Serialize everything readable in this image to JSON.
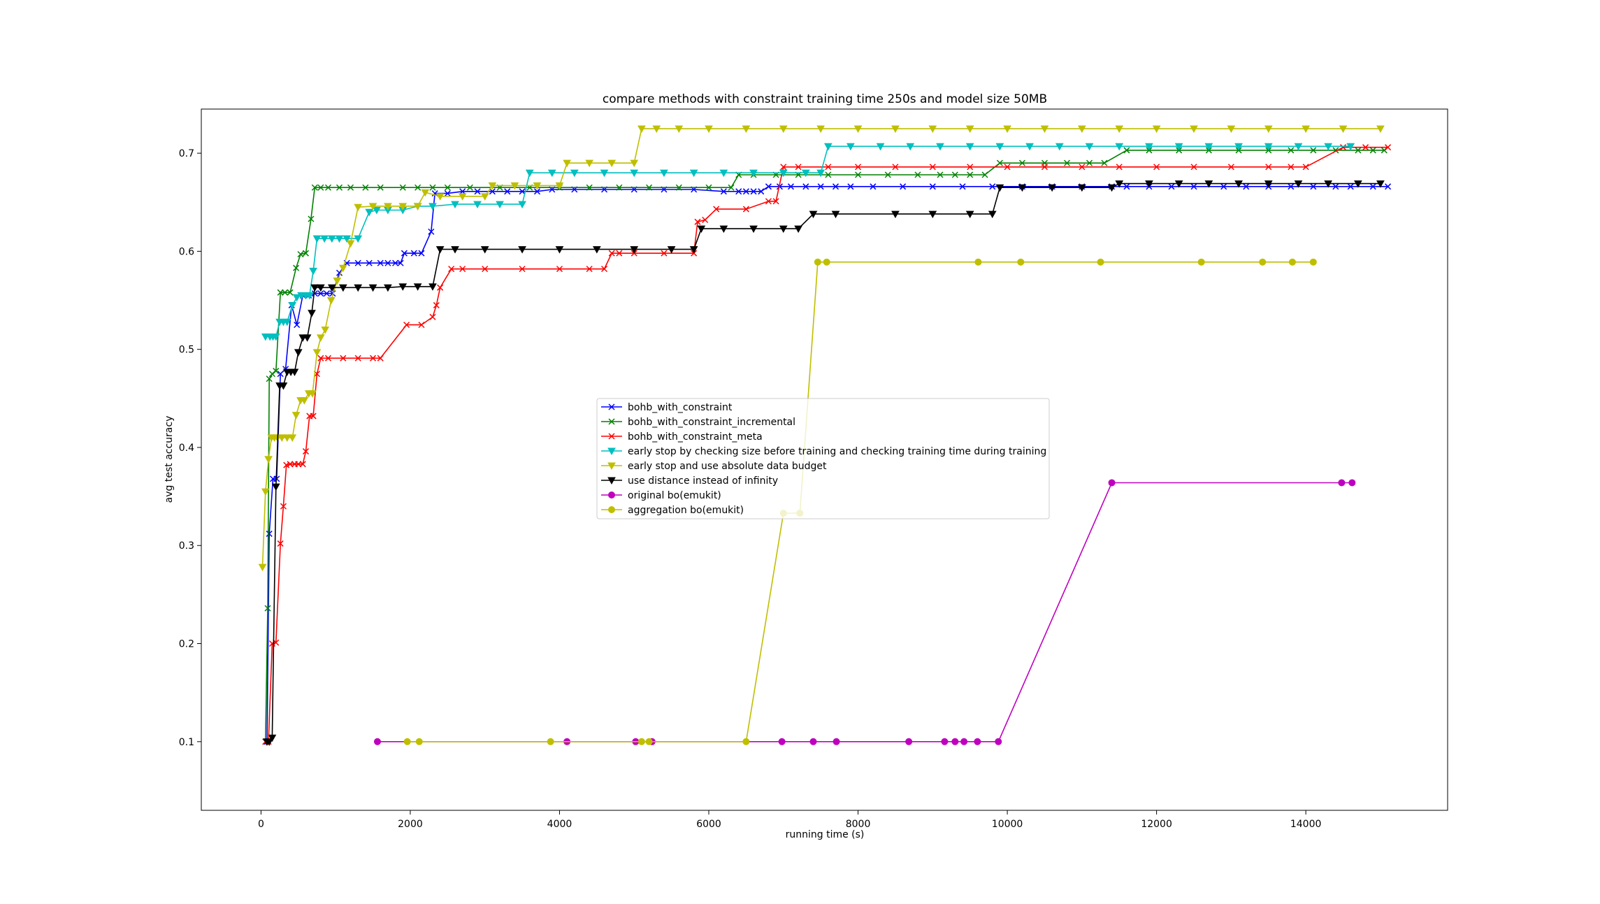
{
  "chart_data": {
    "type": "line",
    "title": "compare methods with constraint training time 250s and model size 50MB",
    "xlabel": "running time (s)",
    "ylabel": "avg test accuracy",
    "xlim": [
      -800,
      15900
    ],
    "ylim": [
      0.03,
      0.745
    ],
    "xticks": [
      0,
      2000,
      4000,
      6000,
      8000,
      10000,
      12000,
      14000
    ],
    "yticks": [
      0.1,
      0.2,
      0.3,
      0.4,
      0.5,
      0.6,
      0.7
    ],
    "grid": false,
    "legend_position": "center",
    "series": [
      {
        "name": "bohb_with_constraint",
        "color": "#0000ff",
        "marker": "x",
        "x": [
          80,
          110,
          160,
          210,
          260,
          330,
          410,
          480,
          560,
          640,
          720,
          800,
          880,
          960,
          1050,
          1150,
          1300,
          1450,
          1600,
          1700,
          1800,
          1870,
          1920,
          2050,
          2150,
          2280,
          2330,
          2500,
          2700,
          2900,
          3100,
          3300,
          3500,
          3700,
          3900,
          4200,
          4600,
          5000,
          5400,
          5800,
          6200,
          6400,
          6500,
          6600,
          6700,
          6800,
          6950,
          7100,
          7300,
          7500,
          7700,
          7900,
          8200,
          8600,
          9000,
          9400,
          9800,
          10200,
          10600,
          11000,
          11400,
          11600,
          11900,
          12200,
          12500,
          12900,
          13200,
          13500,
          13800,
          14100,
          14400,
          14600,
          14900,
          15100
        ],
        "y": [
          0.1,
          0.312,
          0.368,
          0.368,
          0.475,
          0.48,
          0.545,
          0.525,
          0.555,
          0.555,
          0.557,
          0.557,
          0.557,
          0.557,
          0.578,
          0.588,
          0.588,
          0.588,
          0.588,
          0.588,
          0.588,
          0.588,
          0.598,
          0.598,
          0.598,
          0.62,
          0.659,
          0.659,
          0.661,
          0.661,
          0.661,
          0.661,
          0.661,
          0.661,
          0.663,
          0.663,
          0.663,
          0.663,
          0.663,
          0.663,
          0.661,
          0.661,
          0.661,
          0.661,
          0.661,
          0.666,
          0.666,
          0.666,
          0.666,
          0.666,
          0.666,
          0.666,
          0.666,
          0.666,
          0.666,
          0.666,
          0.666,
          0.666,
          0.666,
          0.666,
          0.666,
          0.666,
          0.666,
          0.666,
          0.666,
          0.666,
          0.666,
          0.666,
          0.666,
          0.666,
          0.666,
          0.666,
          0.666,
          0.666
        ]
      },
      {
        "name": "bohb_with_constraint_incremental",
        "color": "#008000",
        "marker": "x",
        "x": [
          60,
          90,
          110,
          150,
          200,
          260,
          320,
          390,
          470,
          530,
          600,
          670,
          720,
          800,
          900,
          1050,
          1200,
          1400,
          1600,
          1900,
          2100,
          2300,
          2500,
          2800,
          3200,
          3600,
          4000,
          4400,
          4800,
          5200,
          5600,
          6000,
          6300,
          6400,
          6600,
          6900,
          7200,
          7600,
          8000,
          8400,
          8800,
          9100,
          9300,
          9500,
          9700,
          9900,
          10200,
          10500,
          10800,
          11100,
          11300,
          11600,
          11900,
          12300,
          12700,
          13100,
          13500,
          13800,
          14100,
          14400,
          14700,
          14900,
          15050
        ],
        "y": [
          0.1,
          0.236,
          0.47,
          0.475,
          0.478,
          0.558,
          0.558,
          0.558,
          0.583,
          0.597,
          0.598,
          0.633,
          0.665,
          0.665,
          0.665,
          0.665,
          0.665,
          0.665,
          0.665,
          0.665,
          0.665,
          0.665,
          0.665,
          0.665,
          0.665,
          0.665,
          0.665,
          0.665,
          0.665,
          0.665,
          0.665,
          0.665,
          0.665,
          0.678,
          0.678,
          0.678,
          0.678,
          0.678,
          0.678,
          0.678,
          0.678,
          0.678,
          0.678,
          0.678,
          0.678,
          0.69,
          0.69,
          0.69,
          0.69,
          0.69,
          0.69,
          0.703,
          0.703,
          0.703,
          0.703,
          0.703,
          0.703,
          0.703,
          0.703,
          0.703,
          0.703,
          0.703,
          0.703
        ]
      },
      {
        "name": "bohb_with_constraint_meta",
        "color": "#ff0000",
        "marker": "x",
        "x": [
          60,
          100,
          150,
          200,
          260,
          300,
          340,
          390,
          450,
          500,
          560,
          600,
          650,
          700,
          750,
          800,
          900,
          1100,
          1300,
          1500,
          1600,
          1950,
          2150,
          2300,
          2350,
          2400,
          2550,
          2700,
          3000,
          3500,
          4000,
          4400,
          4600,
          4700,
          4800,
          5000,
          5400,
          5800,
          5850,
          5950,
          6100,
          6500,
          6800,
          6900,
          7000,
          7200,
          7600,
          8000,
          8500,
          9000,
          9500,
          10000,
          10500,
          11000,
          11500,
          12000,
          12500,
          13000,
          13500,
          13800,
          14000,
          14500,
          14800,
          15100
        ],
        "y": [
          0.1,
          0.1,
          0.2,
          0.201,
          0.302,
          0.34,
          0.382,
          0.383,
          0.383,
          0.383,
          0.383,
          0.396,
          0.432,
          0.432,
          0.475,
          0.491,
          0.491,
          0.491,
          0.491,
          0.491,
          0.491,
          0.525,
          0.525,
          0.533,
          0.545,
          0.563,
          0.582,
          0.582,
          0.582,
          0.582,
          0.582,
          0.582,
          0.582,
          0.598,
          0.598,
          0.598,
          0.598,
          0.598,
          0.63,
          0.632,
          0.643,
          0.643,
          0.651,
          0.651,
          0.686,
          0.686,
          0.686,
          0.686,
          0.686,
          0.686,
          0.686,
          0.686,
          0.686,
          0.686,
          0.686,
          0.686,
          0.686,
          0.686,
          0.686,
          0.686,
          0.686,
          0.706,
          0.706,
          0.706
        ]
      },
      {
        "name": "early stop by checking size before training and checking training time during training",
        "color": "#00bfbf",
        "marker": "v",
        "x": [
          60,
          120,
          160,
          200,
          250,
          300,
          350,
          420,
          480,
          540,
          600,
          650,
          700,
          750,
          850,
          950,
          1050,
          1150,
          1300,
          1450,
          1550,
          1700,
          1900,
          2100,
          2300,
          2600,
          2900,
          3200,
          3500,
          3600,
          3900,
          4200,
          4600,
          5000,
          5400,
          5800,
          6200,
          6600,
          7000,
          7300,
          7500,
          7600,
          7900,
          8300,
          8700,
          9100,
          9500,
          9900,
          10300,
          10700,
          11100,
          11500,
          11900,
          12300,
          12700,
          13100,
          13500,
          13900,
          14300,
          14600
        ],
        "y": [
          0.513,
          0.513,
          0.513,
          0.513,
          0.528,
          0.528,
          0.528,
          0.545,
          0.553,
          0.555,
          0.555,
          0.555,
          0.58,
          0.613,
          0.613,
          0.613,
          0.613,
          0.613,
          0.613,
          0.64,
          0.642,
          0.642,
          0.642,
          0.646,
          0.646,
          0.648,
          0.648,
          0.648,
          0.648,
          0.68,
          0.68,
          0.68,
          0.68,
          0.68,
          0.68,
          0.68,
          0.68,
          0.68,
          0.68,
          0.68,
          0.68,
          0.707,
          0.707,
          0.707,
          0.707,
          0.707,
          0.707,
          0.707,
          0.707,
          0.707,
          0.707,
          0.707,
          0.707,
          0.707,
          0.707,
          0.707,
          0.707,
          0.707,
          0.707,
          0.707
        ]
      },
      {
        "name": "early stop and use absolute data budget",
        "color": "#bfbf00",
        "marker": "v",
        "x": [
          20,
          60,
          100,
          140,
          180,
          220,
          280,
          350,
          420,
          470,
          530,
          580,
          640,
          690,
          750,
          800,
          860,
          940,
          1020,
          1100,
          1200,
          1300,
          1500,
          1700,
          1900,
          2100,
          2200,
          2400,
          2700,
          3000,
          3100,
          3400,
          3700,
          4000,
          4100,
          4400,
          4700,
          5000,
          5100,
          5300,
          5600,
          6000,
          6500,
          7000,
          7500,
          8000,
          8500,
          9000,
          9500,
          10000,
          10500,
          11000,
          11500,
          12000,
          12500,
          13000,
          13500,
          14000,
          14500,
          15000
        ],
        "y": [
          0.278,
          0.355,
          0.388,
          0.41,
          0.41,
          0.41,
          0.41,
          0.41,
          0.41,
          0.433,
          0.448,
          0.448,
          0.455,
          0.455,
          0.497,
          0.512,
          0.52,
          0.55,
          0.57,
          0.583,
          0.608,
          0.645,
          0.646,
          0.646,
          0.646,
          0.646,
          0.66,
          0.656,
          0.656,
          0.656,
          0.667,
          0.667,
          0.667,
          0.667,
          0.69,
          0.69,
          0.69,
          0.69,
          0.725,
          0.725,
          0.725,
          0.725,
          0.725,
          0.725,
          0.725,
          0.725,
          0.725,
          0.725,
          0.725,
          0.725,
          0.725,
          0.725,
          0.725,
          0.725,
          0.725,
          0.725,
          0.725,
          0.725,
          0.725,
          0.725
        ]
      },
      {
        "name": "use distance instead of infinity",
        "color": "#000000",
        "marker": "v",
        "x": [
          80,
          110,
          150,
          200,
          250,
          300,
          350,
          400,
          450,
          500,
          560,
          620,
          680,
          720,
          800,
          950,
          1100,
          1300,
          1500,
          1700,
          1900,
          2100,
          2300,
          2400,
          2600,
          3000,
          3500,
          4000,
          4500,
          5000,
          5500,
          5800,
          5900,
          6200,
          6600,
          7000,
          7200,
          7400,
          7700,
          8500,
          9000,
          9500,
          9800,
          9900,
          10200,
          10600,
          11000,
          11400,
          11500,
          11900,
          12300,
          12700,
          13100,
          13500,
          13900,
          14300,
          14700,
          15000
        ],
        "y": [
          0.1,
          0.1,
          0.104,
          0.36,
          0.463,
          0.463,
          0.477,
          0.477,
          0.477,
          0.497,
          0.512,
          0.512,
          0.537,
          0.563,
          0.563,
          0.563,
          0.563,
          0.563,
          0.563,
          0.563,
          0.564,
          0.564,
          0.564,
          0.602,
          0.602,
          0.602,
          0.602,
          0.602,
          0.602,
          0.602,
          0.602,
          0.602,
          0.623,
          0.623,
          0.623,
          0.623,
          0.623,
          0.638,
          0.638,
          0.638,
          0.638,
          0.638,
          0.638,
          0.665,
          0.665,
          0.665,
          0.665,
          0.665,
          0.669,
          0.669,
          0.669,
          0.669,
          0.669,
          0.669,
          0.669,
          0.669,
          0.669,
          0.669
        ]
      },
      {
        "name": "original bo(emukit)",
        "color": "#bf00bf",
        "marker": "o",
        "x": [
          1560,
          4100,
          5020,
          5240,
          6980,
          7400,
          7710,
          8680,
          9160,
          9300,
          9420,
          9600,
          9880,
          11400,
          14480,
          14620
        ],
        "y": [
          0.1,
          0.1,
          0.1,
          0.1,
          0.1,
          0.1,
          0.1,
          0.1,
          0.1,
          0.1,
          0.1,
          0.1,
          0.1,
          0.364,
          0.364,
          0.364
        ]
      },
      {
        "name": "aggregation bo(emukit)",
        "color": "#bfbf00",
        "marker": "o",
        "x": [
          1960,
          2120,
          3880,
          5100,
          5200,
          6500,
          7000,
          7220,
          7460,
          7580,
          9610,
          10180,
          11250,
          12600,
          13420,
          13820,
          14100
        ],
        "y": [
          0.1,
          0.1,
          0.1,
          0.1,
          0.1,
          0.1,
          0.333,
          0.333,
          0.589,
          0.589,
          0.589,
          0.589,
          0.589,
          0.589,
          0.589,
          0.589,
          0.589
        ]
      }
    ]
  }
}
